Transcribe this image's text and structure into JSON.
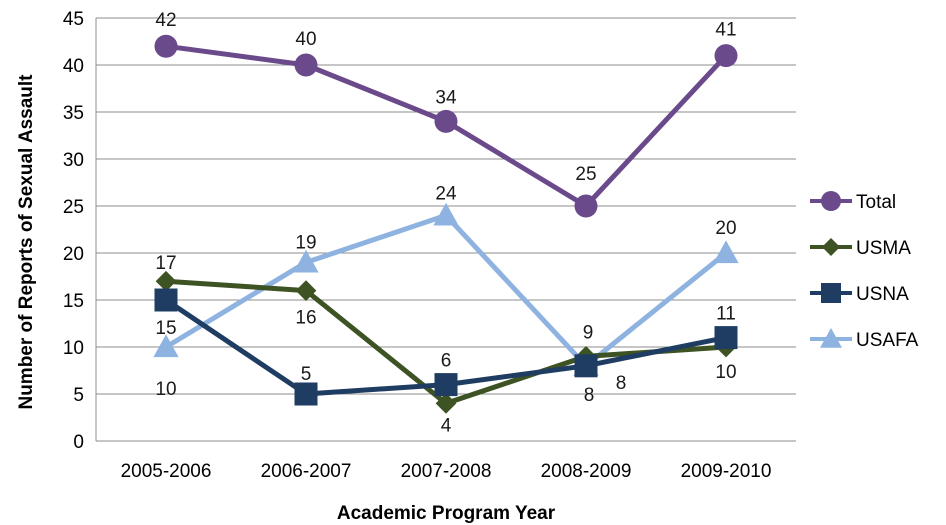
{
  "chart_data": {
    "type": "line",
    "title": "",
    "xlabel": "Academic Program Year",
    "ylabel": "Number of Reports of Sexual Assault",
    "categories": [
      "2005-2006",
      "2006-2007",
      "2007-2008",
      "2008-2009",
      "2009-2010"
    ],
    "ylim": [
      0,
      45
    ],
    "yticks": [
      0,
      5,
      10,
      15,
      20,
      25,
      30,
      35,
      40,
      45
    ],
    "grid": true,
    "legend_position": "right",
    "series": [
      {
        "name": "Total",
        "values": [
          42,
          40,
          34,
          25,
          41
        ],
        "color": "#6b4a8c",
        "marker": "circle"
      },
      {
        "name": "USMA",
        "values": [
          17,
          16,
          4,
          9,
          10
        ],
        "color": "#3e5324",
        "marker": "diamond"
      },
      {
        "name": "USNA",
        "values": [
          15,
          5,
          6,
          8,
          11
        ],
        "color": "#1f3d63",
        "marker": "square"
      },
      {
        "name": "USAFA",
        "values": [
          10,
          19,
          24,
          8,
          20
        ],
        "color": "#8fb3e0",
        "marker": "triangle"
      }
    ]
  }
}
